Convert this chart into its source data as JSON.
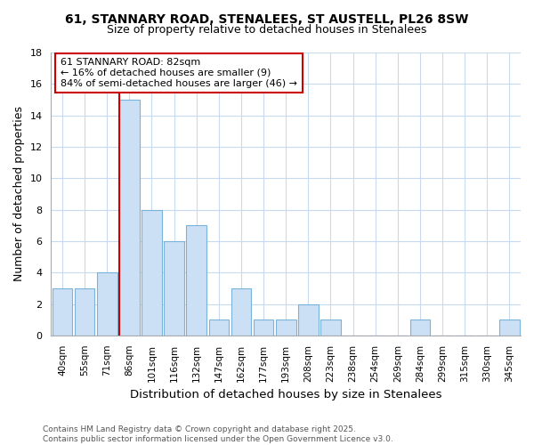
{
  "title": "61, STANNARY ROAD, STENALEES, ST AUSTELL, PL26 8SW",
  "subtitle": "Size of property relative to detached houses in Stenalees",
  "xlabel": "Distribution of detached houses by size in Stenalees",
  "ylabel": "Number of detached properties",
  "categories": [
    "40sqm",
    "55sqm",
    "71sqm",
    "86sqm",
    "101sqm",
    "116sqm",
    "132sqm",
    "147sqm",
    "162sqm",
    "177sqm",
    "193sqm",
    "208sqm",
    "223sqm",
    "238sqm",
    "254sqm",
    "269sqm",
    "284sqm",
    "299sqm",
    "315sqm",
    "330sqm",
    "345sqm"
  ],
  "values": [
    3,
    3,
    4,
    15,
    8,
    6,
    7,
    1,
    3,
    1,
    1,
    2,
    1,
    0,
    0,
    0,
    1,
    0,
    0,
    0,
    1
  ],
  "bar_color": "#cce0f5",
  "bar_edge_color": "#7ab3d9",
  "marker_index": 3,
  "marker_color": "#cc0000",
  "ylim": [
    0,
    18
  ],
  "yticks": [
    0,
    2,
    4,
    6,
    8,
    10,
    12,
    14,
    16,
    18
  ],
  "annotation_text": "61 STANNARY ROAD: 82sqm\n← 16% of detached houses are smaller (9)\n84% of semi-detached houses are larger (46) →",
  "annotation_box_color": "#ffffff",
  "annotation_border_color": "#cc0000",
  "footer_text": "Contains HM Land Registry data © Crown copyright and database right 2025.\nContains public sector information licensed under the Open Government Licence v3.0.",
  "background_color": "#ffffff",
  "grid_color": "#c8daf0",
  "title_fontsize": 10,
  "axis_label_fontsize": 9,
  "tick_fontsize": 7.5,
  "footer_fontsize": 6.5
}
